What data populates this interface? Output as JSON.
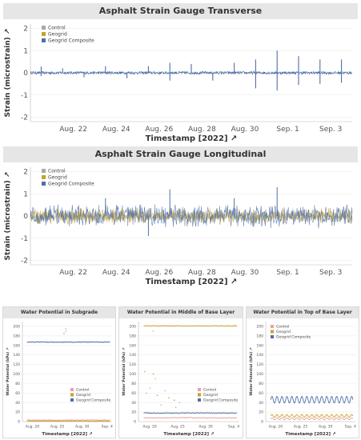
{
  "colors": {
    "control": "#a9a9a9",
    "geogrid": "#c9a227",
    "geogrid_composite": "#4e6fa7",
    "control_small": "#e8a0a0",
    "geogrid_small": "#c9a227",
    "geogrid_composite_small": "#4e6fa7",
    "title_bg": "#e6e6e6"
  },
  "chart_data": [
    {
      "type": "line",
      "title": "Asphalt Strain Gauge Transverse",
      "xlabel": "Timestamp [2022]",
      "ylabel": "Strain (microstrain)",
      "x_ticks": [
        "Aug. 22",
        "Aug. 24",
        "Aug. 26",
        "Aug. 28",
        "Aug. 30",
        "Sep. 1",
        "Sep. 3"
      ],
      "x_range": [
        "2022-08-20",
        "2022-09-04"
      ],
      "y_ticks": [
        2,
        1,
        0,
        -1,
        -2
      ],
      "ylim": [
        -2.2,
        2.2
      ],
      "legend": [
        "Control",
        "Geogrid",
        "Geogrid Composite"
      ],
      "legend_position": "top-left",
      "series": [
        {
          "name": "Geogrid Composite",
          "baseline": 0.0,
          "spikes": [
            [
              "2022-08-20",
              0.28
            ],
            [
              "2022-08-20",
              -0.15
            ],
            [
              "2022-08-21",
              0.2
            ],
            [
              "2022-08-22",
              -0.2
            ],
            [
              "2022-08-23",
              0.3
            ],
            [
              "2022-08-24",
              -0.25
            ],
            [
              "2022-08-25",
              0.3
            ],
            [
              "2022-08-26",
              0.45
            ],
            [
              "2022-08-26",
              -0.35
            ],
            [
              "2022-08-27",
              0.4
            ],
            [
              "2022-08-28",
              -0.35
            ],
            [
              "2022-08-29",
              0.45
            ],
            [
              "2022-08-30",
              0.6
            ],
            [
              "2022-08-30",
              -0.7
            ],
            [
              "2022-08-31",
              1.0
            ],
            [
              "2022-08-31",
              -0.8
            ],
            [
              "2022-09-01",
              0.75
            ],
            [
              "2022-09-01",
              -0.55
            ],
            [
              "2022-09-02",
              0.6
            ],
            [
              "2022-09-02",
              -0.5
            ],
            [
              "2022-09-03",
              0.6
            ],
            [
              "2022-09-03",
              -0.45
            ]
          ]
        }
      ]
    },
    {
      "type": "line",
      "title": "Asphalt Strain Gauge Longitudinal",
      "xlabel": "Timestamp [2022]",
      "ylabel": "Strain (microstrain)",
      "x_ticks": [
        "Aug. 22",
        "Aug. 24",
        "Aug. 26",
        "Aug. 28",
        "Aug. 30",
        "Sep. 1",
        "Sep. 3"
      ],
      "x_range": [
        "2022-08-20",
        "2022-09-04"
      ],
      "y_ticks": [
        2,
        1,
        0,
        -1,
        -2
      ],
      "ylim": [
        -2.2,
        2.2
      ],
      "legend": [
        "Control",
        "Geogrid",
        "Geogrid Composite"
      ],
      "legend_position": "top-left",
      "series": [
        {
          "name": "Control",
          "amplitude": 0.3
        },
        {
          "name": "Geogrid",
          "amplitude": 0.4
        },
        {
          "name": "Geogrid Composite",
          "amplitude": 0.6,
          "spikes": [
            [
              "2022-08-23",
              0.8
            ],
            [
              "2022-08-26",
              1.2
            ],
            [
              "2022-08-25",
              -0.9
            ],
            [
              "2022-08-31",
              1.3
            ],
            [
              "2022-08-29",
              0.8
            ]
          ]
        }
      ]
    },
    {
      "type": "scatter",
      "title": "Water Potential in Subgrade",
      "xlabel": "Timestamp [2022]",
      "ylabel": "Water Potential (kPa)",
      "x_ticks": [
        "Aug. 20",
        "Aug. 25",
        "Aug. 30",
        "Sep. 4"
      ],
      "x_range": [
        "2022-08-18",
        "2022-09-05"
      ],
      "y_ticks": [
        200,
        180,
        160,
        140,
        120,
        100,
        80,
        60,
        40,
        20,
        0
      ],
      "ylim": [
        0,
        210
      ],
      "legend": [
        "Control",
        "Geogrid",
        "Geogrid Composite"
      ],
      "legend_position": "bottom-right",
      "series": [
        {
          "name": "Geogrid Composite",
          "level": 167
        },
        {
          "name": "Control",
          "level": 3
        },
        {
          "name": "Geogrid",
          "level": 1
        },
        {
          "name": "Outliers",
          "points": [
            [
              "2022-08-26",
              195
            ],
            [
              "2022-08-26",
              190
            ],
            [
              "2022-08-26",
              185
            ]
          ]
        }
      ]
    },
    {
      "type": "scatter",
      "title": "Water Potential in Middle of Base Layer",
      "xlabel": "Timestamp [2022]",
      "ylabel": "Water Potential (kPa)",
      "x_ticks": [
        "Aug. 20",
        "Aug. 25",
        "Aug. 30",
        "Sep. 4"
      ],
      "x_range": [
        "2022-08-18",
        "2022-09-05"
      ],
      "y_ticks": [
        200,
        180,
        160,
        140,
        120,
        100,
        80,
        60,
        40,
        20,
        0
      ],
      "ylim": [
        0,
        210
      ],
      "legend": [
        "Control",
        "Geogrid",
        "Geogrid Composite"
      ],
      "legend_position": "bottom-right",
      "series": [
        {
          "name": "Geogrid",
          "level": 201
        },
        {
          "name": "Geogrid Composite",
          "level": 18
        },
        {
          "name": "Control",
          "level": 8
        },
        {
          "name": "Scatter",
          "points": [
            [
              "2022-08-19",
              105
            ],
            [
              "2022-08-20",
              100
            ],
            [
              "2022-08-21",
              90
            ],
            [
              "2022-08-20",
              70
            ],
            [
              "2022-08-22",
              65
            ],
            [
              "2022-08-21",
              55
            ],
            [
              "2022-08-23",
              50
            ],
            [
              "2022-08-24",
              45
            ],
            [
              "2022-08-25",
              40
            ],
            [
              "2022-08-24",
              30
            ],
            [
              "2022-08-22",
              35
            ],
            [
              "2022-08-19",
              60
            ],
            [
              "2022-08-20",
              190
            ]
          ]
        }
      ]
    },
    {
      "type": "line",
      "title": "Water Potential in Top of Base Layer",
      "xlabel": "Timestamp [2022]",
      "ylabel": "Water Potential (kPa)",
      "x_ticks": [
        "Aug. 20",
        "Aug. 25",
        "Aug. 30",
        "Sep. 4"
      ],
      "x_range": [
        "2022-08-18",
        "2022-09-05"
      ],
      "y_ticks": [
        200,
        180,
        160,
        140,
        120,
        100,
        80,
        60,
        40,
        20,
        0
      ],
      "ylim": [
        0,
        210
      ],
      "legend": [
        "Control",
        "Geogrid",
        "Geogrid Composite"
      ],
      "legend_position": "top-left",
      "series": [
        {
          "name": "Geogrid Composite",
          "mean": 46,
          "amplitude": 7
        },
        {
          "name": "Geogrid",
          "mean": 12,
          "amplitude": 3
        },
        {
          "name": "Control",
          "mean": 6,
          "amplitude": 2
        }
      ]
    }
  ]
}
